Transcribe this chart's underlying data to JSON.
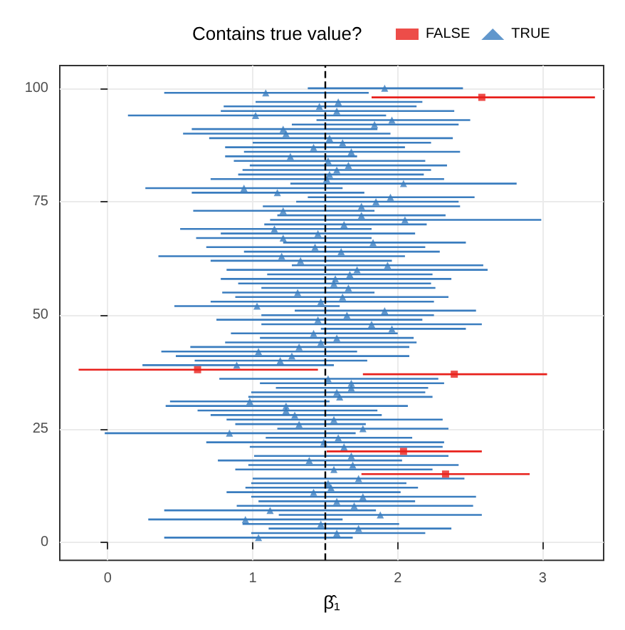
{
  "chart_data": {
    "type": "scatter",
    "xlabel": "β̂₁",
    "legend_title": "Contains true value?",
    "legend": "top",
    "grid": true,
    "xlim": [
      -0.33,
      3.42
    ],
    "xticks": [
      0,
      1,
      2,
      3
    ],
    "ylim": [
      -4,
      105
    ],
    "yticks": [
      0,
      25,
      50,
      75,
      100
    ],
    "ref_lines": [
      {
        "axis": "x",
        "value": 1.5,
        "label": null,
        "color": "#000000",
        "line_style": "dashed"
      }
    ],
    "series": [
      {
        "name": "FALSE",
        "color": "#e8211c",
        "marker": "square",
        "x": [
          2.58,
          0.62,
          2.39,
          2.04,
          2.33
        ],
        "values": [
          98,
          38,
          37,
          20,
          15
        ],
        "xerrors": [
          [
            1.82,
            3.36
          ],
          [
            -0.2,
            1.45
          ],
          [
            1.76,
            3.03
          ],
          [
            1.51,
            2.58
          ],
          [
            1.75,
            2.91
          ]
        ]
      },
      {
        "name": "TRUE",
        "color": "#3a7dbf",
        "marker": "triangle",
        "x": [
          1.91,
          1.09,
          1.59,
          1.46,
          1.58,
          1.02,
          1.96,
          1.84,
          1.21,
          1.23,
          1.53,
          1.62,
          1.42,
          1.68,
          1.26,
          1.52,
          1.66,
          1.58,
          1.53,
          1.51,
          2.04,
          0.94,
          1.17,
          1.95,
          1.85,
          1.75,
          1.21,
          1.75,
          2.05,
          1.63,
          1.15,
          1.45,
          1.21,
          1.83,
          1.43,
          1.61,
          1.2,
          1.33,
          1.93,
          1.72,
          1.67,
          1.57,
          1.56,
          1.66,
          1.31,
          1.62,
          1.47,
          1.03,
          1.91,
          1.65,
          1.45,
          1.82,
          1.96,
          1.42,
          1.58,
          1.47,
          1.32,
          1.04,
          1.27,
          1.19,
          0.89,
          1.52,
          1.68,
          1.68,
          1.58,
          1.6,
          0.98,
          1.23,
          1.23,
          1.29,
          1.56,
          1.32,
          1.76,
          0.84,
          1.59,
          1.49,
          1.63,
          1.68,
          1.39,
          1.69,
          1.56,
          1.73,
          1.52,
          1.54,
          1.42,
          1.76,
          1.58,
          1.7,
          1.12,
          1.88,
          0.95,
          1.47,
          1.73,
          1.58,
          1.04
        ],
        "values": [
          100,
          99,
          97,
          96,
          95,
          94,
          93,
          92,
          91,
          90,
          89,
          88,
          87,
          86,
          85,
          84,
          83,
          82,
          81,
          80,
          79,
          78,
          77,
          76,
          75,
          74,
          73,
          72,
          71,
          70,
          69,
          68,
          67,
          66,
          65,
          64,
          63,
          62,
          61,
          60,
          59,
          58,
          57,
          56,
          55,
          54,
          53,
          52,
          51,
          50,
          49,
          48,
          47,
          46,
          45,
          44,
          43,
          42,
          41,
          40,
          39,
          36,
          35,
          34,
          33,
          32,
          31,
          30,
          29,
          28,
          27,
          26,
          25,
          24,
          23,
          22,
          21,
          19,
          18,
          17,
          16,
          14,
          13,
          12,
          11,
          10,
          9,
          8,
          7,
          6,
          5,
          4,
          3,
          2,
          1
        ],
        "xerrors": [
          [
            1.38,
            2.45
          ],
          [
            0.39,
            1.8
          ],
          [
            1.02,
            2.17
          ],
          [
            0.8,
            2.13
          ],
          [
            0.78,
            2.39
          ],
          [
            0.14,
            1.92
          ],
          [
            1.44,
            2.5
          ],
          [
            1.27,
            2.42
          ],
          [
            0.58,
            1.86
          ],
          [
            0.52,
            1.95
          ],
          [
            0.7,
            2.38
          ],
          [
            1.0,
            2.23
          ],
          [
            0.81,
            2.05
          ],
          [
            0.94,
            2.43
          ],
          [
            0.81,
            1.72
          ],
          [
            0.87,
            2.19
          ],
          [
            0.98,
            2.34
          ],
          [
            0.93,
            2.23
          ],
          [
            0.9,
            2.18
          ],
          [
            0.71,
            2.32
          ],
          [
            1.26,
            2.82
          ],
          [
            0.26,
            1.62
          ],
          [
            0.58,
            1.77
          ],
          [
            1.38,
            2.53
          ],
          [
            1.3,
            2.42
          ],
          [
            1.07,
            2.43
          ],
          [
            0.59,
            1.84
          ],
          [
            1.17,
            2.33
          ],
          [
            1.12,
            2.99
          ],
          [
            1.08,
            2.2
          ],
          [
            0.5,
            1.82
          ],
          [
            0.78,
            2.12
          ],
          [
            0.61,
            1.82
          ],
          [
            1.21,
            2.47
          ],
          [
            0.68,
            2.19
          ],
          [
            0.94,
            2.29
          ],
          [
            0.35,
            2.05
          ],
          [
            0.71,
            1.96
          ],
          [
            1.27,
            2.59
          ],
          [
            0.82,
            2.62
          ],
          [
            1.1,
            2.24
          ],
          [
            0.78,
            2.37
          ],
          [
            0.9,
            2.23
          ],
          [
            1.06,
            2.26
          ],
          [
            0.79,
            1.84
          ],
          [
            0.88,
            2.35
          ],
          [
            0.71,
            2.25
          ],
          [
            0.46,
            1.6
          ],
          [
            1.29,
            2.54
          ],
          [
            1.06,
            2.25
          ],
          [
            0.75,
            2.17
          ],
          [
            1.06,
            2.58
          ],
          [
            1.47,
            2.47
          ],
          [
            0.85,
            2.0
          ],
          [
            1.05,
            2.11
          ],
          [
            0.81,
            2.13
          ],
          [
            0.57,
            2.08
          ],
          [
            0.37,
            1.72
          ],
          [
            0.47,
            2.08
          ],
          [
            0.6,
            1.79
          ],
          [
            0.24,
            1.56
          ],
          [
            0.77,
            2.28
          ],
          [
            1.05,
            2.32
          ],
          [
            1.16,
            2.21
          ],
          [
            0.99,
            2.19
          ],
          [
            0.97,
            2.24
          ],
          [
            0.43,
            1.53
          ],
          [
            0.4,
            2.07
          ],
          [
            0.62,
            1.86
          ],
          [
            0.71,
            1.89
          ],
          [
            0.82,
            2.31
          ],
          [
            0.88,
            1.78
          ],
          [
            1.17,
            2.35
          ],
          [
            -0.02,
            1.71
          ],
          [
            1.09,
            2.1
          ],
          [
            0.68,
            2.32
          ],
          [
            0.98,
            2.31
          ],
          [
            1.01,
            2.35
          ],
          [
            0.76,
            2.03
          ],
          [
            0.97,
            2.42
          ],
          [
            0.88,
            2.24
          ],
          [
            1.0,
            2.46
          ],
          [
            0.99,
            2.06
          ],
          [
            0.95,
            2.14
          ],
          [
            0.82,
            2.02
          ],
          [
            0.99,
            2.54
          ],
          [
            1.04,
            2.12
          ],
          [
            0.89,
            2.52
          ],
          [
            0.39,
            1.85
          ],
          [
            1.18,
            2.58
          ],
          [
            0.28,
            1.62
          ],
          [
            0.93,
            2.01
          ],
          [
            1.11,
            2.37
          ],
          [
            0.99,
            2.19
          ],
          [
            0.39,
            1.69
          ]
        ]
      }
    ]
  }
}
